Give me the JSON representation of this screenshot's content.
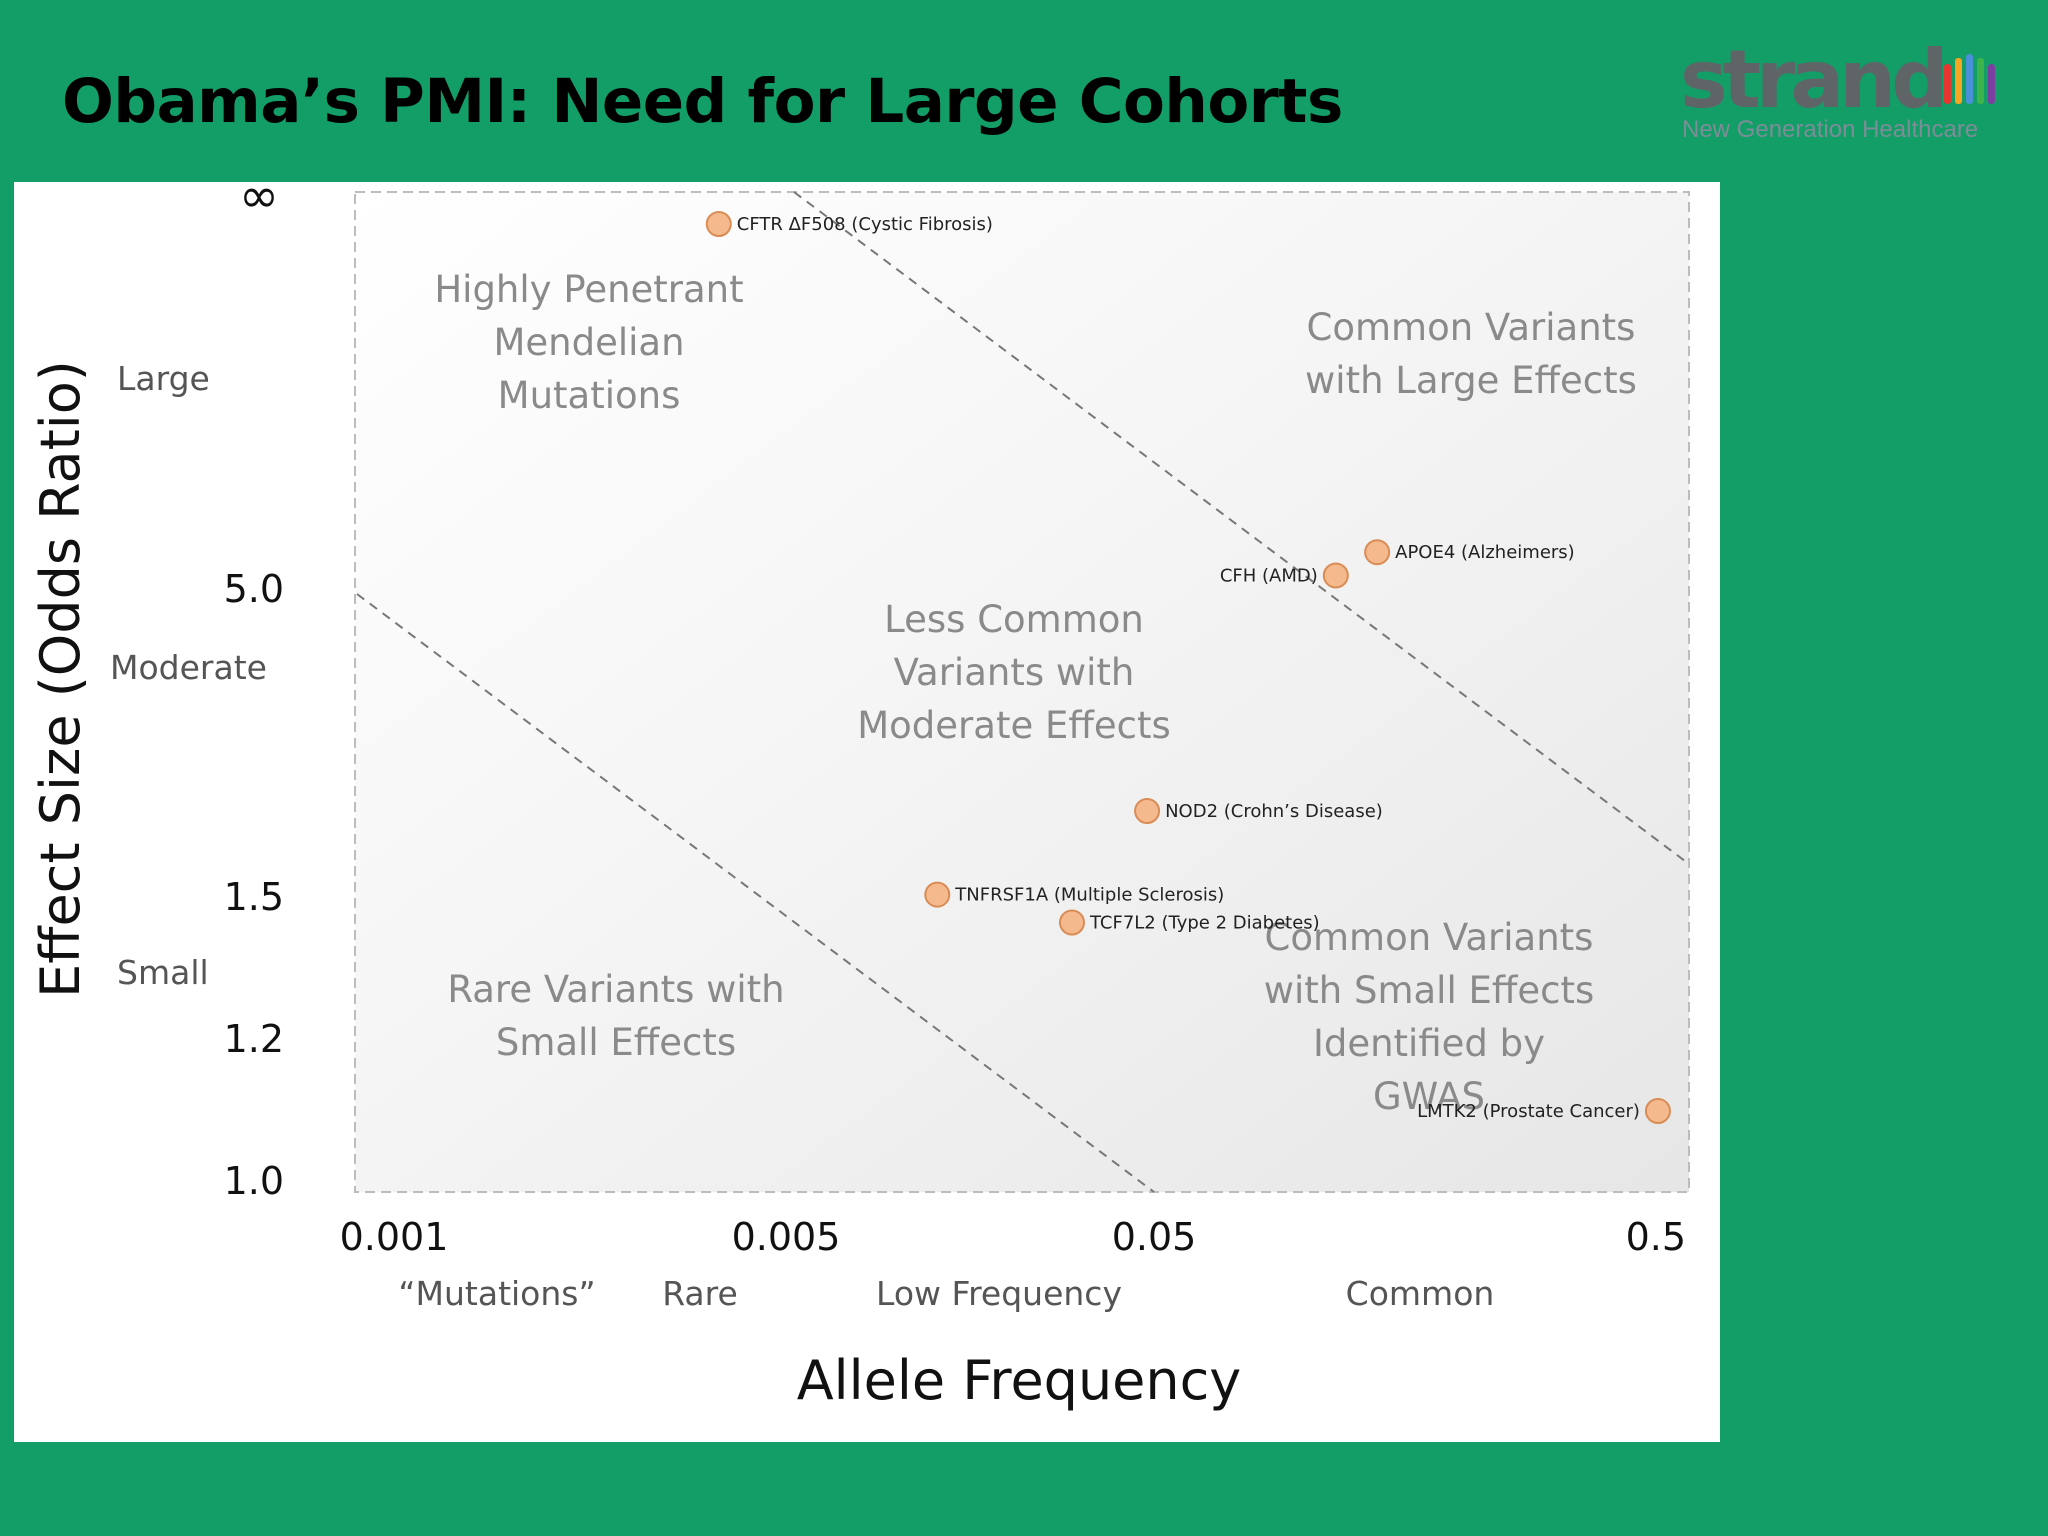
{
  "slide": {
    "title": "Obama’s PMI: Need for Large Cohorts"
  },
  "logo": {
    "word": "strand",
    "tagline": "New Generation Healthcare",
    "bar_colors": [
      "#e8352f",
      "#f5a623",
      "#4a90d9",
      "#3cb44b",
      "#7b3fa0"
    ]
  },
  "chart_data": {
    "type": "scatter",
    "xlabel": "Allele Frequency",
    "ylabel": "Effect Size (Odds Ratio)",
    "xscale": "log",
    "xlim": [
      0.001,
      0.5
    ],
    "x_ticks": [
      "0.001",
      "0.005",
      "0.05",
      "0.5"
    ],
    "x_categories": [
      "“Mutations”",
      "Rare",
      "Low Frequency",
      "Common"
    ],
    "y_ticks": [
      "∞",
      "5.0",
      "1.5",
      "1.2",
      "1.0"
    ],
    "y_categories": [
      "Large",
      "Moderate",
      "Small"
    ],
    "regions": [
      {
        "id": "mendelian",
        "lines": [
          "Highly Penetrant",
          "Mendelian",
          "Mutations"
        ]
      },
      {
        "id": "common-large",
        "lines": [
          "Common Variants",
          "with Large Effects"
        ]
      },
      {
        "id": "less-common",
        "lines": [
          "Less Common",
          "Variants with",
          "Moderate Effects"
        ]
      },
      {
        "id": "rare-small",
        "lines": [
          "Rare Variants with",
          "Small Effects"
        ]
      },
      {
        "id": "gwas",
        "lines": [
          "Common Variants",
          "with Small Effects",
          "Identified by",
          "GWAS"
        ]
      }
    ],
    "points": [
      {
        "label": "CFTR ΔF508 (Cystic Fibrosis)",
        "x": 0.0045,
        "y": "∞",
        "label_side": "right"
      },
      {
        "label": "APOE4 (Alzheimers)",
        "x": 0.11,
        "y": 10.0,
        "label_side": "right"
      },
      {
        "label": "CFH (AMD)",
        "x": 0.09,
        "y": 7.0,
        "label_side": "left"
      },
      {
        "label": "NOD2 (Crohn’s Disease)",
        "x": 0.036,
        "y": 2.5,
        "label_side": "right"
      },
      {
        "label": "TNFRSF1A (Multiple Sclerosis)",
        "x": 0.013,
        "y": 1.55,
        "label_side": "right"
      },
      {
        "label": "TCF7L2 (Type 2 Diabetes)",
        "x": 0.025,
        "y": 1.45,
        "label_side": "right"
      },
      {
        "label": "LMTK2 (Prostate Cancer)",
        "x": 0.43,
        "y": 1.1,
        "label_side": "left"
      }
    ],
    "marker_color": "#f5b98e",
    "marker_edge": "#d98c55",
    "grid": false,
    "legend": "none"
  }
}
